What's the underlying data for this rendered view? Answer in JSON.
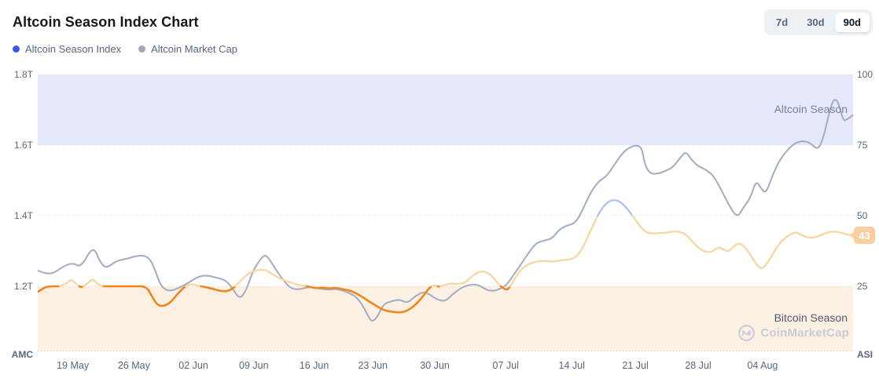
{
  "header": {
    "title": "Altcoin Season Index Chart"
  },
  "range_buttons": [
    {
      "label": "7d",
      "selected": false
    },
    {
      "label": "30d",
      "selected": false
    },
    {
      "label": "90d",
      "selected": true
    }
  ],
  "legend": [
    {
      "label": "Altcoin Season Index",
      "color": "#3b57f0"
    },
    {
      "label": "Altcoin Market Cap",
      "color": "#a1a8ba"
    }
  ],
  "watermark_text": "CoinMarketCap",
  "colors": {
    "line_market_cap": "#a5aec3",
    "line_asi_low": "#f0861d",
    "line_asi_mid": "#f9d5a0",
    "line_asi_high": "#a9c2f4",
    "band_altcoin_season": "#e6e9fc",
    "band_bitcoin_season": "#fcf0e2",
    "badge_bg": "#f8cf9d",
    "grid": "#d5dae2",
    "text_dark": "#17181c",
    "text_muted": "#58667e"
  },
  "chart_data": {
    "type": "line",
    "title": "Altcoin Season Index Chart",
    "legend_position": "top-left",
    "grid": "dotted-horizontal",
    "left_axis": {
      "name": "AMC",
      "ticks": [
        "1.8T",
        "1.6T",
        "1.4T",
        "1.2T"
      ],
      "tick_values": [
        1.8,
        1.6,
        1.4,
        1.2
      ],
      "range": [
        1.02,
        1.8
      ],
      "unit": "USD trillions"
    },
    "right_axis": {
      "name": "ASI",
      "ticks": [
        "100",
        "75",
        "50",
        "25"
      ],
      "tick_values": [
        100,
        75,
        50,
        25
      ],
      "range": [
        2,
        100
      ],
      "unit": "index"
    },
    "x_ticks": [
      {
        "label": "19 May",
        "f": 0.043
      },
      {
        "label": "26 May",
        "f": 0.118
      },
      {
        "label": "02 Jun",
        "f": 0.191
      },
      {
        "label": "09 Jun",
        "f": 0.265
      },
      {
        "label": "16 Jun",
        "f": 0.339
      },
      {
        "label": "23 Jun",
        "f": 0.411
      },
      {
        "label": "30 Jun",
        "f": 0.487
      },
      {
        "label": "07 Jul",
        "f": 0.574
      },
      {
        "label": "14 Jul",
        "f": 0.655
      },
      {
        "label": "21 Jul",
        "f": 0.733
      },
      {
        "label": "28 Jul",
        "f": 0.81
      },
      {
        "label": "04 Aug",
        "f": 0.889
      }
    ],
    "zones": [
      {
        "name": "Altcoin Season",
        "axis": "right",
        "range": [
          75,
          100
        ]
      },
      {
        "name": "Bitcoin Season",
        "axis": "right",
        "range": [
          0,
          25
        ]
      }
    ],
    "current_value": 43,
    "series": [
      {
        "name": "Altcoin Market Cap",
        "axis": "left",
        "unit": "T",
        "points": [
          [
            0,
            1.245
          ],
          [
            0.014,
            1.229
          ],
          [
            0.031,
            1.256
          ],
          [
            0.043,
            1.267
          ],
          [
            0.053,
            1.253
          ],
          [
            0.068,
            1.316
          ],
          [
            0.076,
            1.27
          ],
          [
            0.084,
            1.25
          ],
          [
            0.096,
            1.272
          ],
          [
            0.11,
            1.278
          ],
          [
            0.125,
            1.289
          ],
          [
            0.137,
            1.282
          ],
          [
            0.145,
            1.24
          ],
          [
            0.151,
            1.2
          ],
          [
            0.161,
            1.185
          ],
          [
            0.174,
            1.196
          ],
          [
            0.185,
            1.21
          ],
          [
            0.197,
            1.228
          ],
          [
            0.208,
            1.231
          ],
          [
            0.22,
            1.224
          ],
          [
            0.231,
            1.217
          ],
          [
            0.24,
            1.19
          ],
          [
            0.248,
            1.163
          ],
          [
            0.256,
            1.19
          ],
          [
            0.264,
            1.245
          ],
          [
            0.274,
            1.28
          ],
          [
            0.28,
            1.29
          ],
          [
            0.287,
            1.266
          ],
          [
            0.297,
            1.23
          ],
          [
            0.309,
            1.195
          ],
          [
            0.32,
            1.19
          ],
          [
            0.332,
            1.199
          ],
          [
            0.343,
            1.194
          ],
          [
            0.355,
            1.19
          ],
          [
            0.366,
            1.193
          ],
          [
            0.378,
            1.185
          ],
          [
            0.39,
            1.172
          ],
          [
            0.399,
            1.145
          ],
          [
            0.407,
            1.107
          ],
          [
            0.411,
            1.1
          ],
          [
            0.417,
            1.115
          ],
          [
            0.424,
            1.15
          ],
          [
            0.434,
            1.158
          ],
          [
            0.444,
            1.163
          ],
          [
            0.453,
            1.152
          ],
          [
            0.463,
            1.172
          ],
          [
            0.473,
            1.185
          ],
          [
            0.48,
            1.178
          ],
          [
            0.49,
            1.162
          ],
          [
            0.5,
            1.157
          ],
          [
            0.509,
            1.178
          ],
          [
            0.519,
            1.195
          ],
          [
            0.528,
            1.204
          ],
          [
            0.54,
            1.205
          ],
          [
            0.55,
            1.19
          ],
          [
            0.559,
            1.186
          ],
          [
            0.567,
            1.193
          ],
          [
            0.575,
            1.203
          ],
          [
            0.583,
            1.23
          ],
          [
            0.592,
            1.26
          ],
          [
            0.602,
            1.295
          ],
          [
            0.611,
            1.322
          ],
          [
            0.621,
            1.33
          ],
          [
            0.631,
            1.335
          ],
          [
            0.64,
            1.362
          ],
          [
            0.65,
            1.373
          ],
          [
            0.66,
            1.38
          ],
          [
            0.669,
            1.42
          ],
          [
            0.679,
            1.47
          ],
          [
            0.689,
            1.5
          ],
          [
            0.698,
            1.512
          ],
          [
            0.708,
            1.547
          ],
          [
            0.718,
            1.58
          ],
          [
            0.727,
            1.595
          ],
          [
            0.735,
            1.6
          ],
          [
            0.741,
            1.592
          ],
          [
            0.744,
            1.55
          ],
          [
            0.75,
            1.52
          ],
          [
            0.76,
            1.518
          ],
          [
            0.77,
            1.527
          ],
          [
            0.779,
            1.537
          ],
          [
            0.789,
            1.567
          ],
          [
            0.795,
            1.582
          ],
          [
            0.802,
            1.558
          ],
          [
            0.81,
            1.54
          ],
          [
            0.82,
            1.53
          ],
          [
            0.829,
            1.513
          ],
          [
            0.839,
            1.47
          ],
          [
            0.849,
            1.425
          ],
          [
            0.858,
            1.394
          ],
          [
            0.866,
            1.425
          ],
          [
            0.874,
            1.45
          ],
          [
            0.881,
            1.5
          ],
          [
            0.887,
            1.478
          ],
          [
            0.893,
            1.462
          ],
          [
            0.901,
            1.512
          ],
          [
            0.908,
            1.55
          ],
          [
            0.918,
            1.583
          ],
          [
            0.928,
            1.605
          ],
          [
            0.937,
            1.612
          ],
          [
            0.947,
            1.608
          ],
          [
            0.957,
            1.585
          ],
          [
            0.964,
            1.623
          ],
          [
            0.972,
            1.705
          ],
          [
            0.977,
            1.732
          ],
          [
            0.982,
            1.722
          ],
          [
            0.988,
            1.668
          ],
          [
            0.993,
            1.673
          ],
          [
            1,
            1.685
          ]
        ]
      },
      {
        "name": "Altcoin Season Index",
        "axis": "right",
        "unit": "index",
        "color_rule": {
          "below_25": "orange",
          "25_to_50": "peach",
          "above_50": "blue"
        },
        "points": [
          [
            0,
            23
          ],
          [
            0.008,
            24.6
          ],
          [
            0.015,
            25
          ],
          [
            0.027,
            25
          ],
          [
            0.037,
            26.2
          ],
          [
            0.041,
            27.6
          ],
          [
            0.047,
            25.8
          ],
          [
            0.053,
            24.6
          ],
          [
            0.06,
            25.6
          ],
          [
            0.067,
            27.8
          ],
          [
            0.073,
            25.8
          ],
          [
            0.081,
            25
          ],
          [
            0.094,
            25
          ],
          [
            0.106,
            25
          ],
          [
            0.12,
            25
          ],
          [
            0.133,
            25
          ],
          [
            0.14,
            21.5
          ],
          [
            0.147,
            18.2
          ],
          [
            0.154,
            18
          ],
          [
            0.162,
            19
          ],
          [
            0.17,
            21.8
          ],
          [
            0.177,
            24
          ],
          [
            0.183,
            25.4
          ],
          [
            0.189,
            25.8
          ],
          [
            0.197,
            25.2
          ],
          [
            0.204,
            24.8
          ],
          [
            0.214,
            24.2
          ],
          [
            0.224,
            23.3
          ],
          [
            0.233,
            23.2
          ],
          [
            0.241,
            24.6
          ],
          [
            0.249,
            27
          ],
          [
            0.257,
            29.2
          ],
          [
            0.264,
            30.4
          ],
          [
            0.272,
            30.9
          ],
          [
            0.28,
            30.8
          ],
          [
            0.287,
            29.5
          ],
          [
            0.295,
            28
          ],
          [
            0.303,
            27
          ],
          [
            0.311,
            26.2
          ],
          [
            0.318,
            25.6
          ],
          [
            0.326,
            25.2
          ],
          [
            0.334,
            24.8
          ],
          [
            0.341,
            24.3
          ],
          [
            0.349,
            24.6
          ],
          [
            0.357,
            24.2
          ],
          [
            0.365,
            24.5
          ],
          [
            0.372,
            24.1
          ],
          [
            0.38,
            23.7
          ],
          [
            0.388,
            22.9
          ],
          [
            0.395,
            21.8
          ],
          [
            0.403,
            20.3
          ],
          [
            0.411,
            18.8
          ],
          [
            0.419,
            17.4
          ],
          [
            0.426,
            16.4
          ],
          [
            0.436,
            15.9
          ],
          [
            0.446,
            15.7
          ],
          [
            0.455,
            16.6
          ],
          [
            0.464,
            18.6
          ],
          [
            0.473,
            21.6
          ],
          [
            0.479,
            24
          ],
          [
            0.485,
            25.4
          ],
          [
            0.492,
            24.9
          ],
          [
            0.499,
            25.3
          ],
          [
            0.505,
            26.1
          ],
          [
            0.512,
            25.7
          ],
          [
            0.519,
            26
          ],
          [
            0.525,
            26.4
          ],
          [
            0.531,
            28.2
          ],
          [
            0.538,
            29.7
          ],
          [
            0.544,
            30.3
          ],
          [
            0.55,
            30.1
          ],
          [
            0.556,
            29
          ],
          [
            0.563,
            26.5
          ],
          [
            0.57,
            24.4
          ],
          [
            0.576,
            23.7
          ],
          [
            0.581,
            25.6
          ],
          [
            0.587,
            28.6
          ],
          [
            0.593,
            31
          ],
          [
            0.6,
            32.6
          ],
          [
            0.608,
            33.5
          ],
          [
            0.615,
            34
          ],
          [
            0.623,
            34
          ],
          [
            0.631,
            33.7
          ],
          [
            0.638,
            34
          ],
          [
            0.646,
            34.4
          ],
          [
            0.654,
            34.5
          ],
          [
            0.662,
            35.8
          ],
          [
            0.669,
            39
          ],
          [
            0.677,
            44
          ],
          [
            0.685,
            49
          ],
          [
            0.692,
            52.8
          ],
          [
            0.7,
            55
          ],
          [
            0.707,
            55.7
          ],
          [
            0.714,
            55
          ],
          [
            0.72,
            53.5
          ],
          [
            0.727,
            51
          ],
          [
            0.733,
            48.5
          ],
          [
            0.739,
            46.2
          ],
          [
            0.744,
            44.5
          ],
          [
            0.751,
            43.7
          ],
          [
            0.759,
            43.8
          ],
          [
            0.767,
            43.9
          ],
          [
            0.774,
            44.1
          ],
          [
            0.781,
            44.5
          ],
          [
            0.788,
            44.2
          ],
          [
            0.795,
            43.4
          ],
          [
            0.801,
            41.5
          ],
          [
            0.808,
            39.3
          ],
          [
            0.815,
            37.6
          ],
          [
            0.822,
            37.1
          ],
          [
            0.828,
            37.3
          ],
          [
            0.834,
            38.9
          ],
          [
            0.84,
            38.3
          ],
          [
            0.846,
            37.2
          ],
          [
            0.851,
            38.3
          ],
          [
            0.857,
            39.9
          ],
          [
            0.862,
            40.2
          ],
          [
            0.868,
            38.6
          ],
          [
            0.874,
            36.3
          ],
          [
            0.879,
            33.8
          ],
          [
            0.885,
            31.6
          ],
          [
            0.889,
            31.3
          ],
          [
            0.895,
            33.2
          ],
          [
            0.901,
            36
          ],
          [
            0.906,
            38.7
          ],
          [
            0.912,
            40.9
          ],
          [
            0.918,
            42.4
          ],
          [
            0.924,
            43.6
          ],
          [
            0.93,
            44.2
          ],
          [
            0.935,
            43.4
          ],
          [
            0.941,
            42.6
          ],
          [
            0.947,
            42.2
          ],
          [
            0.953,
            42.3
          ],
          [
            0.959,
            42.9
          ],
          [
            0.964,
            43.6
          ],
          [
            0.97,
            44.2
          ],
          [
            0.976,
            44.4
          ],
          [
            0.982,
            44.2
          ],
          [
            0.988,
            43.7
          ],
          [
            0.993,
            43.3
          ],
          [
            1,
            43
          ]
        ]
      }
    ]
  }
}
